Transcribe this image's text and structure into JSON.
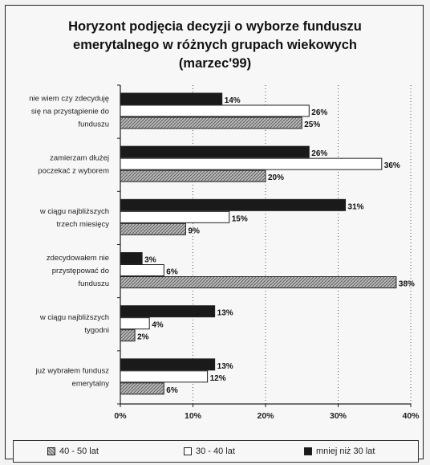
{
  "title": {
    "line1": "Horyzont podjęcia decyzji o wyborze funduszu",
    "line2": "emerytalnego w różnych grupach wiekowych",
    "line3": "(marzec'99)"
  },
  "colors": {
    "dark": "#1a1a1a",
    "white": "#ffffff",
    "hatched": "#9a9a9a"
  },
  "chart_data": {
    "type": "bar",
    "orientation": "horizontal",
    "categories": [
      [
        "nie wiem czy zdecyduję",
        "się na przystąpienie do",
        "funduszu"
      ],
      [
        "zamierzam dłużej",
        "poczekać z wyborem"
      ],
      [
        "w ciągu najbliższych",
        "trzech miesięcy"
      ],
      [
        "zdecydowałem nie",
        "przystępować do",
        "funduszu"
      ],
      [
        "w ciągu najbliższych",
        "tygodni"
      ],
      [
        "już wybrałem fundusz",
        "emerytalny"
      ]
    ],
    "series": [
      {
        "name": "mniej niż 30 lat",
        "style": "dark",
        "values": [
          14,
          26,
          31,
          3,
          13,
          13
        ],
        "labels": [
          "14%",
          "26%",
          "31%",
          "3%",
          "13%",
          "13%"
        ]
      },
      {
        "name": "30 - 40 lat",
        "style": "white",
        "values": [
          26,
          36,
          15,
          6,
          4,
          12
        ],
        "labels": [
          "26%",
          "36%",
          "15%",
          "6%",
          "4%",
          "12%"
        ]
      },
      {
        "name": "40 - 50 lat",
        "style": "hatched",
        "values": [
          25,
          20,
          9,
          38,
          2,
          6
        ],
        "labels": [
          "25%",
          "20%",
          "9%",
          "38%",
          "2%",
          "6%"
        ]
      }
    ],
    "xlim": [
      0,
      40
    ],
    "xticks": [
      "0%",
      "10%",
      "20%",
      "30%",
      "40%"
    ],
    "grid": "vertical dotted",
    "legend": "bottom"
  },
  "legend": {
    "items": [
      {
        "label": "40 - 50 lat",
        "style": "hatched"
      },
      {
        "label": "30 - 40 lat",
        "style": "white"
      },
      {
        "label": "mniej niż 30 lat",
        "style": "dark"
      }
    ]
  }
}
